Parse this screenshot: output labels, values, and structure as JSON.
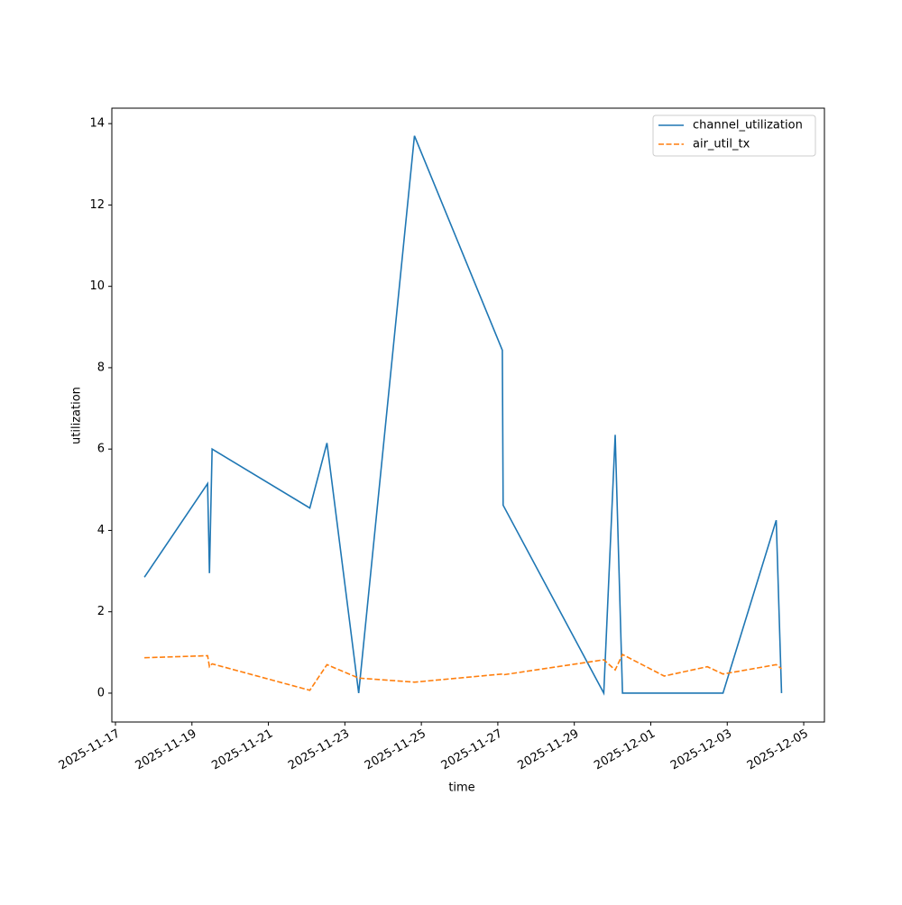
{
  "chart_data": {
    "type": "line",
    "xlabel": "time",
    "ylabel": "utilization",
    "x": [
      "2025-11-17T18:10",
      "2025-11-19T09:50",
      "2025-11-19T11:00",
      "2025-11-19T12:40",
      "2025-11-22T02:00",
      "2025-11-22T12:45",
      "2025-11-23T08:40",
      "2025-11-24T19:40",
      "2025-11-27T02:50",
      "2025-11-27T03:20",
      "2025-11-29T18:30",
      "2025-11-30T01:40",
      "2025-11-30T06:15",
      "2025-12-01T08:25",
      "2025-12-02T11:30",
      "2025-12-02T21:20",
      "2025-12-04T06:45",
      "2025-12-04T10:05"
    ],
    "series": [
      {
        "name": "channel_utilization",
        "color": "#1f77b4",
        "dash": false,
        "values": [
          2.85,
          5.15,
          2.95,
          6.0,
          4.55,
          6.15,
          0,
          13.7,
          8.43,
          4.62,
          0,
          6.35,
          0,
          0,
          0,
          0,
          4.25,
          0
        ]
      },
      {
        "name": "air_util_tx",
        "color": "#ff7f0e",
        "dash": true,
        "values": [
          0.87,
          0.92,
          0.65,
          0.72,
          0.07,
          0.7,
          0.37,
          0.27,
          0.47,
          0.45,
          0.82,
          0.57,
          0.95,
          0.42,
          0.65,
          0.47,
          0.7,
          0.6
        ]
      }
    ],
    "xlim": [
      "2025-11-16T21:44",
      "2025-12-05T13:00"
    ],
    "xticks": [
      "2025-11-17",
      "2025-11-19",
      "2025-11-21",
      "2025-11-23",
      "2025-11-25",
      "2025-11-27",
      "2025-11-29",
      "2025-12-01",
      "2025-12-03",
      "2025-12-05"
    ],
    "ylim": [
      -0.71,
      14.38
    ],
    "yticks": [
      0,
      2,
      4,
      6,
      8,
      10,
      12,
      14
    ],
    "legend": "upper right"
  }
}
